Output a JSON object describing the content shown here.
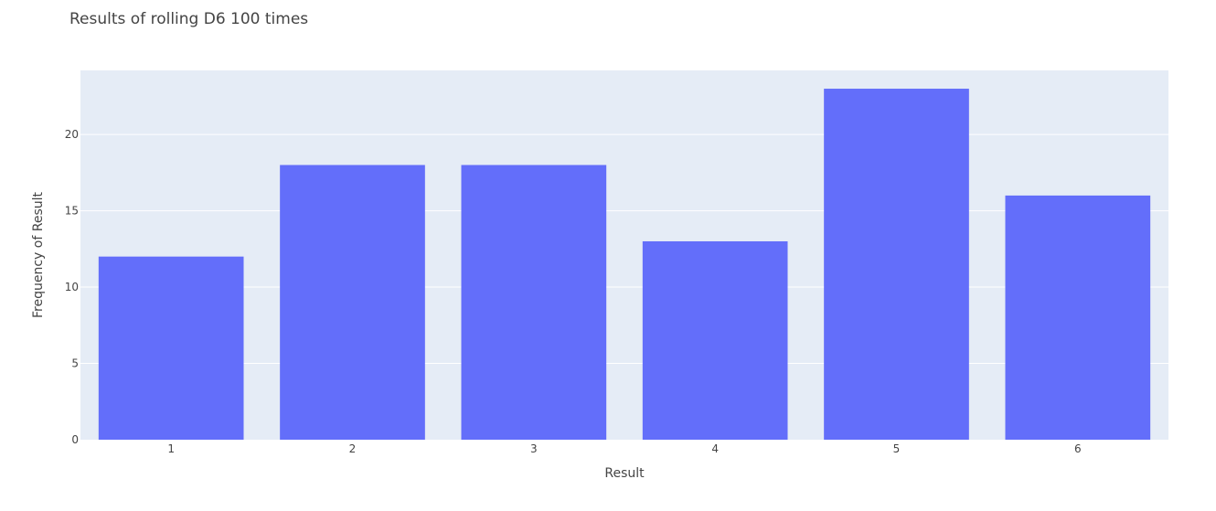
{
  "chart_data": {
    "type": "bar",
    "title": "Results of rolling D6 100 times",
    "xlabel": "Result",
    "ylabel": "Frequency of Result",
    "categories": [
      "1",
      "2",
      "3",
      "4",
      "5",
      "6"
    ],
    "values": [
      12,
      18,
      18,
      13,
      23,
      16
    ],
    "yticks": [
      0,
      5,
      10,
      15,
      20
    ],
    "ylim": [
      0,
      24.2
    ],
    "grid": true,
    "legend": "none",
    "colors": {
      "bar": "#636efa",
      "plot_background": "#e5ecf6",
      "gridline": "#ffffff",
      "text": "#444444"
    }
  }
}
